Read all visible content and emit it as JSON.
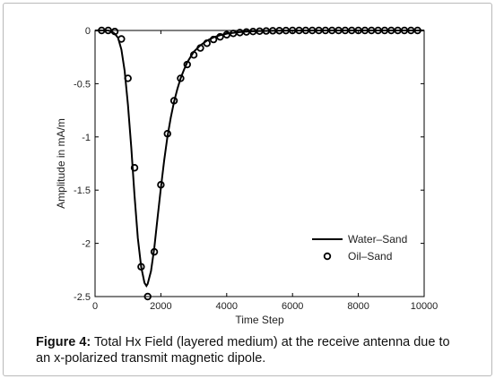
{
  "chart_data": {
    "type": "line",
    "xlabel": "Time Step",
    "ylabel": "Amplitude in mA/m",
    "xlim": [
      0,
      10000
    ],
    "ylim": [
      -2.5,
      0
    ],
    "x_ticks": [
      "0",
      "2000",
      "4000",
      "6000",
      "8000",
      "10000"
    ],
    "y_ticks": [
      "0",
      "-0.5",
      "-1",
      "-1.5",
      "-2",
      "-2.5"
    ],
    "x_tick_values": [
      0,
      2000,
      4000,
      6000,
      8000,
      10000
    ],
    "y_tick_values": [
      0,
      -0.5,
      -1,
      -1.5,
      -2,
      -2.5
    ],
    "grid": false,
    "legend_position": "bottom-right",
    "series": [
      {
        "name": "Water–Sand",
        "style": "line",
        "color": "#000000",
        "x": [
          0,
          200,
          400,
          500,
          600,
          700,
          800,
          900,
          1000,
          1100,
          1200,
          1300,
          1400,
          1500,
          1560,
          1600,
          1700,
          1800,
          1900,
          2000,
          2100,
          2200,
          2300,
          2400,
          2500,
          2600,
          2700,
          2800,
          2900,
          3000,
          3200,
          3400,
          3600,
          3800,
          4000,
          4300,
          4600,
          5000,
          5500,
          6000,
          7000,
          8000,
          9000,
          10000
        ],
        "y": [
          0,
          0,
          0,
          -0.01,
          -0.03,
          -0.07,
          -0.18,
          -0.38,
          -0.7,
          -1.1,
          -1.55,
          -1.95,
          -2.22,
          -2.37,
          -2.4,
          -2.38,
          -2.26,
          -2.04,
          -1.76,
          -1.48,
          -1.22,
          -1.0,
          -0.82,
          -0.67,
          -0.55,
          -0.45,
          -0.37,
          -0.3,
          -0.25,
          -0.2,
          -0.14,
          -0.095,
          -0.065,
          -0.045,
          -0.03,
          -0.018,
          -0.01,
          -0.005,
          -0.002,
          -0.001,
          0,
          0,
          0,
          0
        ]
      },
      {
        "name": "Oil–Sand",
        "style": "markers",
        "color": "#000000",
        "x": [
          200,
          400,
          600,
          800,
          1000,
          1200,
          1400,
          1600,
          1800,
          2000,
          2200,
          2400,
          2600,
          2800,
          3000,
          3200,
          3400,
          3600,
          3800,
          4000,
          4200,
          4400,
          4600,
          4800,
          5000,
          5200,
          5400,
          5600,
          5800,
          6000,
          6200,
          6400,
          6600,
          6800,
          7000,
          7200,
          7400,
          7600,
          7800,
          8000,
          8200,
          8400,
          8600,
          8800,
          9000,
          9200,
          9400,
          9600,
          9800
        ],
        "y": [
          0,
          0,
          -0.01,
          -0.08,
          -0.45,
          -1.29,
          -2.22,
          -2.5,
          -2.08,
          -1.45,
          -0.97,
          -0.66,
          -0.45,
          -0.32,
          -0.23,
          -0.165,
          -0.12,
          -0.085,
          -0.06,
          -0.04,
          -0.028,
          -0.02,
          -0.014,
          -0.01,
          -0.007,
          -0.005,
          -0.003,
          -0.002,
          -0.001,
          0,
          0,
          0,
          0,
          0,
          0,
          0,
          0,
          0,
          0,
          0,
          0,
          0,
          0,
          0,
          0,
          0,
          0,
          0,
          0
        ]
      }
    ]
  },
  "caption": {
    "label": "Figure 4:",
    "text": " Total Hx Field (layered medium) at the receive antenna due to an x-polarized transmit magnetic dipole."
  }
}
